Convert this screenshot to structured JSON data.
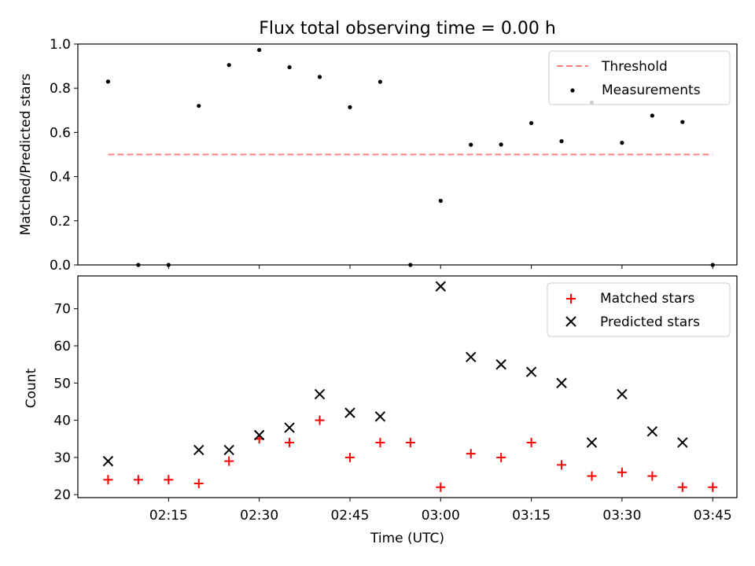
{
  "chart_data": [
    {
      "type": "scatter",
      "title": "Flux total observing time = 0.00 h",
      "xlabel": "",
      "ylabel": "Matched/Predicted stars",
      "ylim": [
        0.0,
        1.0
      ],
      "yticks": [
        "0.0",
        "0.2",
        "0.4",
        "0.6",
        "0.8",
        "1.0"
      ],
      "xlim": [
        "02:00",
        "03:49"
      ],
      "legend_position": "top-right",
      "threshold": {
        "name": "Threshold",
        "value": 0.5,
        "x": [
          "02:05",
          "03:45"
        ],
        "color": "#ff8080"
      },
      "series": [
        {
          "name": "Measurements",
          "color": "#000000",
          "x": [
            "02:05",
            "02:10",
            "02:15",
            "02:20",
            "02:25",
            "02:30",
            "02:35",
            "02:40",
            "02:45",
            "02:50",
            "02:55",
            "03:00",
            "03:05",
            "03:10",
            "03:15",
            "03:20",
            "03:25",
            "03:30",
            "03:35",
            "03:40",
            "03:45"
          ],
          "y": [
            0.83,
            0.0,
            0.0,
            0.72,
            0.905,
            0.973,
            0.895,
            0.851,
            0.714,
            0.829,
            0.0,
            0.29,
            0.544,
            0.545,
            0.642,
            0.56,
            0.735,
            0.553,
            0.676,
            0.647,
            0.0
          ]
        }
      ]
    },
    {
      "type": "scatter",
      "xlabel": "Time (UTC)",
      "ylabel": "Count",
      "ylim": [
        19.2,
        78.8
      ],
      "yticks": [
        "20",
        "30",
        "40",
        "50",
        "60",
        "70"
      ],
      "xlim": [
        "02:00",
        "03:49"
      ],
      "xticks": [
        "02:15",
        "02:30",
        "02:45",
        "03:00",
        "03:15",
        "03:30",
        "03:45"
      ],
      "legend_position": "top-right",
      "series": [
        {
          "name": "Matched stars",
          "marker": "plus",
          "color": "#ff0000",
          "x": [
            "02:05",
            "02:10",
            "02:15",
            "02:20",
            "02:25",
            "02:30",
            "02:35",
            "02:40",
            "02:45",
            "02:50",
            "02:55",
            "03:00",
            "03:05",
            "03:10",
            "03:15",
            "03:20",
            "03:25",
            "03:30",
            "03:35",
            "03:40",
            "03:45"
          ],
          "y": [
            24,
            24,
            24,
            23,
            29,
            35,
            34,
            40,
            30,
            34,
            34,
            22,
            31,
            30,
            34,
            28,
            25,
            26,
            25,
            22,
            22
          ]
        },
        {
          "name": "Predicted stars",
          "marker": "x",
          "color": "#000000",
          "x": [
            "02:05",
            "02:20",
            "02:25",
            "02:30",
            "02:35",
            "02:40",
            "02:45",
            "02:50",
            "03:00",
            "03:05",
            "03:10",
            "03:15",
            "03:20",
            "03:25",
            "03:30",
            "03:35",
            "03:40"
          ],
          "y": [
            29,
            32,
            32,
            36,
            38,
            47,
            42,
            41,
            76,
            57,
            55,
            53,
            50,
            34,
            47,
            37,
            34
          ]
        }
      ]
    }
  ]
}
